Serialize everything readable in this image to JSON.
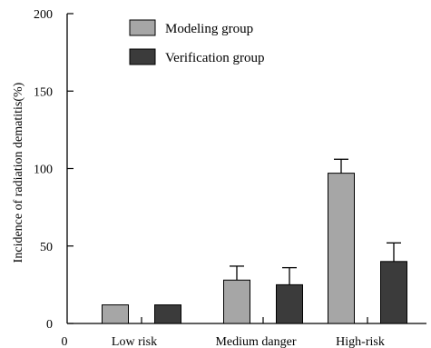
{
  "chart_data": {
    "type": "bar",
    "title": "",
    "xlabel": "",
    "ylabel": "Incidence of radiation dematitis(%)",
    "categories": [
      "Low risk",
      "Medium danger",
      "High-risk"
    ],
    "x_origin_label": "0",
    "series": [
      {
        "name": "Modeling group",
        "values": [
          12,
          28,
          97
        ],
        "errors": [
          0,
          9,
          9
        ],
        "color": "#a6a6a6"
      },
      {
        "name": "Verification group",
        "values": [
          12,
          25,
          40
        ],
        "errors": [
          0,
          11,
          12
        ],
        "color": "#3b3b3b"
      }
    ],
    "ylim": [
      0,
      200
    ],
    "yticks": [
      0,
      50,
      100,
      150,
      200
    ],
    "grid": false,
    "legend_position": "top-center"
  }
}
